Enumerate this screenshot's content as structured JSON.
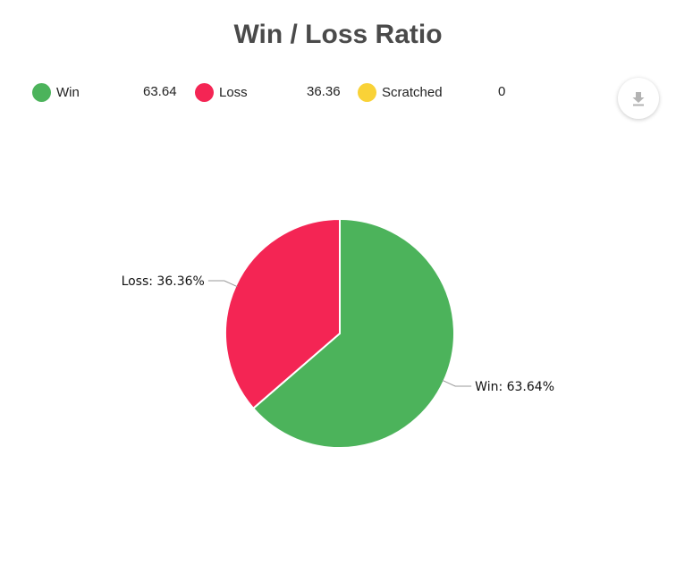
{
  "chart_data": {
    "type": "pie",
    "title": "Win / Loss Ratio",
    "categories": [
      "Win",
      "Loss",
      "Scratched"
    ],
    "values": [
      63.64,
      36.36,
      0
    ],
    "colors": [
      "#4cb35b",
      "#f42554",
      "#f9d237"
    ],
    "legend_values": [
      "63.64",
      "36.36",
      "0"
    ],
    "slice_labels": [
      "Win: 63.64%",
      "Loss: 36.36%",
      ""
    ],
    "legend_position": "top",
    "start_angle": "12 o'clock, clockwise"
  },
  "toolbar": {
    "download_icon": "download-icon"
  }
}
